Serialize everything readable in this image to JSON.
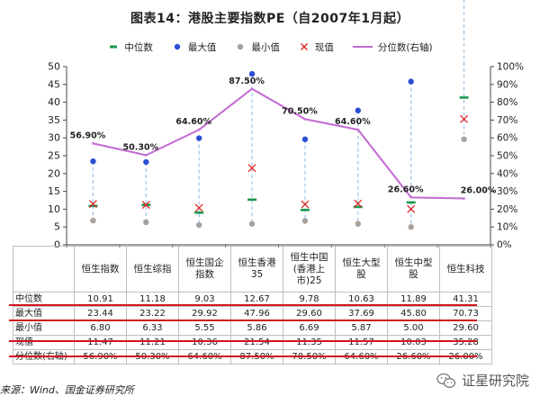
{
  "title": "图表14：港股主要指数PE（自2007年1月起）",
  "legend": {
    "median": "中位数",
    "max": "最大值",
    "min": "最小值",
    "current": "现值",
    "percentile": "分位数(右轴)"
  },
  "row_labels": {
    "median": "中位数",
    "max": "最大值",
    "min": "最小值",
    "current": "现值",
    "percentile": "分位数(右轴)"
  },
  "source": "来源：Wind、国金证券研究所",
  "watermark": "证星研究院",
  "colors": {
    "median": "#1a9850",
    "max": "#2a4fd6",
    "min": "#a8a19b",
    "current": "#e02424",
    "percentile": "#c26bd1",
    "range": "#9ec5ea",
    "highlight": "#d2141e"
  },
  "chart_data": {
    "type": "scatter",
    "title": "图表14：港股主要指数PE（自2007年1月起）",
    "categories": [
      "恒生指数",
      "恒生综指",
      "恒生国企指数",
      "恒生香港35",
      "恒生中国(香港上市)25",
      "恒生大型股",
      "恒生中型股",
      "恒生科技"
    ],
    "category_display": [
      [
        "恒生指数"
      ],
      [
        "恒生综指"
      ],
      [
        "恒生国企",
        "指数"
      ],
      [
        "恒生香港",
        "35"
      ],
      [
        "恒生中国",
        "(香港上",
        "市)25"
      ],
      [
        "恒生大型",
        "股"
      ],
      [
        "恒生中型",
        "股"
      ],
      [
        "恒生科技"
      ]
    ],
    "series": [
      {
        "name": "中位数",
        "values": [
          10.91,
          11.18,
          9.03,
          12.67,
          9.78,
          10.63,
          11.89,
          41.31
        ],
        "display": [
          "10.91",
          "11.18",
          "9.03",
          "12.67",
          "9.78",
          "10.63",
          "11.89",
          "41.31"
        ]
      },
      {
        "name": "最大值",
        "values": [
          23.44,
          23.22,
          29.92,
          47.96,
          29.6,
          37.69,
          45.8,
          70.73
        ],
        "display": [
          "23.44",
          "23.22",
          "29.92",
          "47.96",
          "29.60",
          "37.69",
          "45.80",
          "70.73"
        ]
      },
      {
        "name": "最小值",
        "values": [
          6.8,
          6.33,
          5.55,
          5.86,
          6.69,
          5.87,
          5.0,
          29.6
        ],
        "display": [
          "6.80",
          "6.33",
          "5.55",
          "5.86",
          "6.69",
          "5.87",
          "5.00",
          "29.60"
        ]
      },
      {
        "name": "现值",
        "values": [
          11.47,
          11.21,
          10.36,
          21.54,
          11.35,
          11.57,
          10.03,
          35.28
        ],
        "display": [
          "11.47",
          "11.21",
          "10.36",
          "21.54",
          "11.35",
          "11.57",
          "10.03",
          "35.28"
        ]
      },
      {
        "name": "分位数(右轴)",
        "axis": "right",
        "values": [
          56.9,
          50.3,
          64.6,
          87.5,
          70.5,
          64.6,
          26.6,
          26.0
        ],
        "display": [
          "56.90%",
          "50.30%",
          "64.60%",
          "87.50%",
          "70.50%",
          "64.60%",
          "26.60%",
          "26.00%"
        ]
      }
    ],
    "y_left": {
      "min": 0,
      "max": 50,
      "step": 5,
      "ticks": [
        "0",
        "5",
        "10",
        "15",
        "20",
        "25",
        "30",
        "35",
        "40",
        "45",
        "50"
      ]
    },
    "y_right": {
      "min": 0,
      "max": 100,
      "step": 10,
      "ticks": [
        "0%",
        "10%",
        "20%",
        "30%",
        "40%",
        "50%",
        "60%",
        "70%",
        "80%",
        "90%",
        "100%"
      ]
    },
    "legend_position": "top",
    "grid": false
  }
}
